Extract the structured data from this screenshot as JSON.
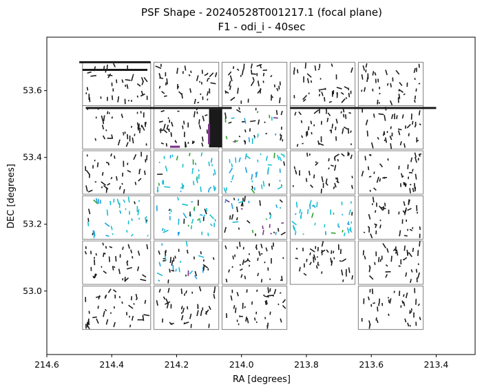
{
  "chart_data": {
    "type": "scatter",
    "title": "PSF Shape - 20240528T001217.1 (focal plane)",
    "subtitle": "F1 - odi_i - 40sec",
    "xlabel": "RA [degrees]",
    "ylabel": "DEC [degrees]",
    "xlim": [
      214.6,
      213.28
    ],
    "ylim": [
      52.81,
      53.76
    ],
    "x_inverted": true,
    "grid": false,
    "legend": "none",
    "x_ticks": [
      214.6,
      214.4,
      214.2,
      214.0,
      213.8,
      213.6,
      213.4
    ],
    "x_tick_labels": [
      "214.6",
      "214.4",
      "214.2",
      "214.0",
      "213.8",
      "213.6",
      "213.4"
    ],
    "y_ticks": [
      53.0,
      53.2,
      53.4,
      53.6
    ],
    "y_tick_labels": [
      "53.0",
      "53.2",
      "53.4",
      "53.6"
    ],
    "colors": {
      "frame": "#000000",
      "ccd_outline": "#7f7f7f",
      "whisker_dark": "#1a1a1a",
      "whisker_cyan": "#17becf",
      "whisker_blue": "#1f9ee0",
      "whisker_green": "#2ca02c",
      "whisker_purple": "#7b2d8b"
    },
    "ccds": [
      {
        "ra": [
          214.28,
          214.49
        ],
        "dec": [
          53.555,
          53.685
        ]
      },
      {
        "ra": [
          214.07,
          214.27
        ],
        "dec": [
          53.555,
          53.685
        ]
      },
      {
        "ra": [
          213.86,
          214.06
        ],
        "dec": [
          53.555,
          53.685
        ]
      },
      {
        "ra": [
          213.65,
          213.85
        ],
        "dec": [
          53.555,
          53.685
        ]
      },
      {
        "ra": [
          213.44,
          213.64
        ],
        "dec": [
          53.555,
          53.685
        ]
      },
      {
        "ra": [
          214.28,
          214.49
        ],
        "dec": [
          53.425,
          53.555
        ]
      },
      {
        "ra": [
          214.07,
          214.27
        ],
        "dec": [
          53.425,
          53.555
        ]
      },
      {
        "ra": [
          213.86,
          214.06
        ],
        "dec": [
          53.425,
          53.555
        ]
      },
      {
        "ra": [
          213.65,
          213.85
        ],
        "dec": [
          53.425,
          53.555
        ]
      },
      {
        "ra": [
          213.44,
          213.64
        ],
        "dec": [
          53.425,
          53.555
        ]
      },
      {
        "ra": [
          214.28,
          214.49
        ],
        "dec": [
          53.29,
          53.42
        ]
      },
      {
        "ra": [
          214.07,
          214.27
        ],
        "dec": [
          53.29,
          53.42
        ]
      },
      {
        "ra": [
          213.86,
          214.06
        ],
        "dec": [
          53.29,
          53.42
        ]
      },
      {
        "ra": [
          213.65,
          213.85
        ],
        "dec": [
          53.29,
          53.42
        ]
      },
      {
        "ra": [
          213.44,
          213.64
        ],
        "dec": [
          53.29,
          53.42
        ]
      },
      {
        "ra": [
          214.28,
          214.49
        ],
        "dec": [
          53.155,
          53.285
        ]
      },
      {
        "ra": [
          214.07,
          214.27
        ],
        "dec": [
          53.155,
          53.285
        ]
      },
      {
        "ra": [
          213.86,
          214.06
        ],
        "dec": [
          53.155,
          53.285
        ]
      },
      {
        "ra": [
          213.65,
          213.85
        ],
        "dec": [
          53.155,
          53.285
        ]
      },
      {
        "ra": [
          213.44,
          213.64
        ],
        "dec": [
          53.155,
          53.285
        ]
      },
      {
        "ra": [
          214.28,
          214.49
        ],
        "dec": [
          53.02,
          53.15
        ]
      },
      {
        "ra": [
          214.07,
          214.27
        ],
        "dec": [
          53.02,
          53.15
        ]
      },
      {
        "ra": [
          213.86,
          214.06
        ],
        "dec": [
          53.02,
          53.15
        ]
      },
      {
        "ra": [
          213.65,
          213.85
        ],
        "dec": [
          53.02,
          53.15
        ]
      },
      {
        "ra": [
          213.44,
          213.64
        ],
        "dec": [
          53.02,
          53.15
        ]
      },
      {
        "ra": [
          214.28,
          214.49
        ],
        "dec": [
          52.885,
          53.015
        ]
      },
      {
        "ra": [
          214.07,
          214.27
        ],
        "dec": [
          52.885,
          53.015
        ]
      },
      {
        "ra": [
          213.86,
          214.06
        ],
        "dec": [
          52.885,
          53.015
        ]
      },
      {
        "ra": [
          213.44,
          213.64
        ],
        "dec": [
          52.885,
          53.015
        ]
      }
    ],
    "whisker_color_groups": [
      [
        "dark",
        "dark",
        "dark",
        "dark",
        "dark"
      ],
      [
        "dark",
        "dark",
        "mixed",
        "dark",
        "dark"
      ],
      [
        "dark",
        "cyan",
        "cyan",
        "dark",
        "dark"
      ],
      [
        "cyan",
        "cyan",
        "mixed",
        "cyan",
        "dark"
      ],
      [
        "dark",
        "mixed",
        "dark",
        "dark",
        "dark"
      ],
      [
        "dark",
        "dark",
        "dark",
        null,
        "dark"
      ]
    ],
    "streaks": [
      {
        "ra": [
          214.5,
          214.28
        ],
        "dec": [
          53.685,
          53.685
        ],
        "color": "dark"
      },
      {
        "ra": [
          214.49,
          214.29
        ],
        "dec": [
          53.662,
          53.662
        ],
        "color": "dark"
      },
      {
        "ra": [
          214.48,
          214.03
        ],
        "dec": [
          53.548,
          53.548
        ],
        "color": "dark"
      },
      {
        "ra": [
          213.85,
          213.4
        ],
        "dec": [
          53.548,
          53.548
        ],
        "color": "dark"
      },
      {
        "ra": [
          214.1,
          214.06
        ],
        "dec": [
          53.43,
          53.545
        ],
        "color": "dark",
        "wide": true
      },
      {
        "ra": [
          214.22,
          214.19
        ],
        "dec": [
          53.432,
          53.432
        ],
        "color": "purple"
      },
      {
        "ra": [
          214.1,
          214.1
        ],
        "dec": [
          53.44,
          53.5
        ],
        "color": "purple"
      }
    ]
  }
}
